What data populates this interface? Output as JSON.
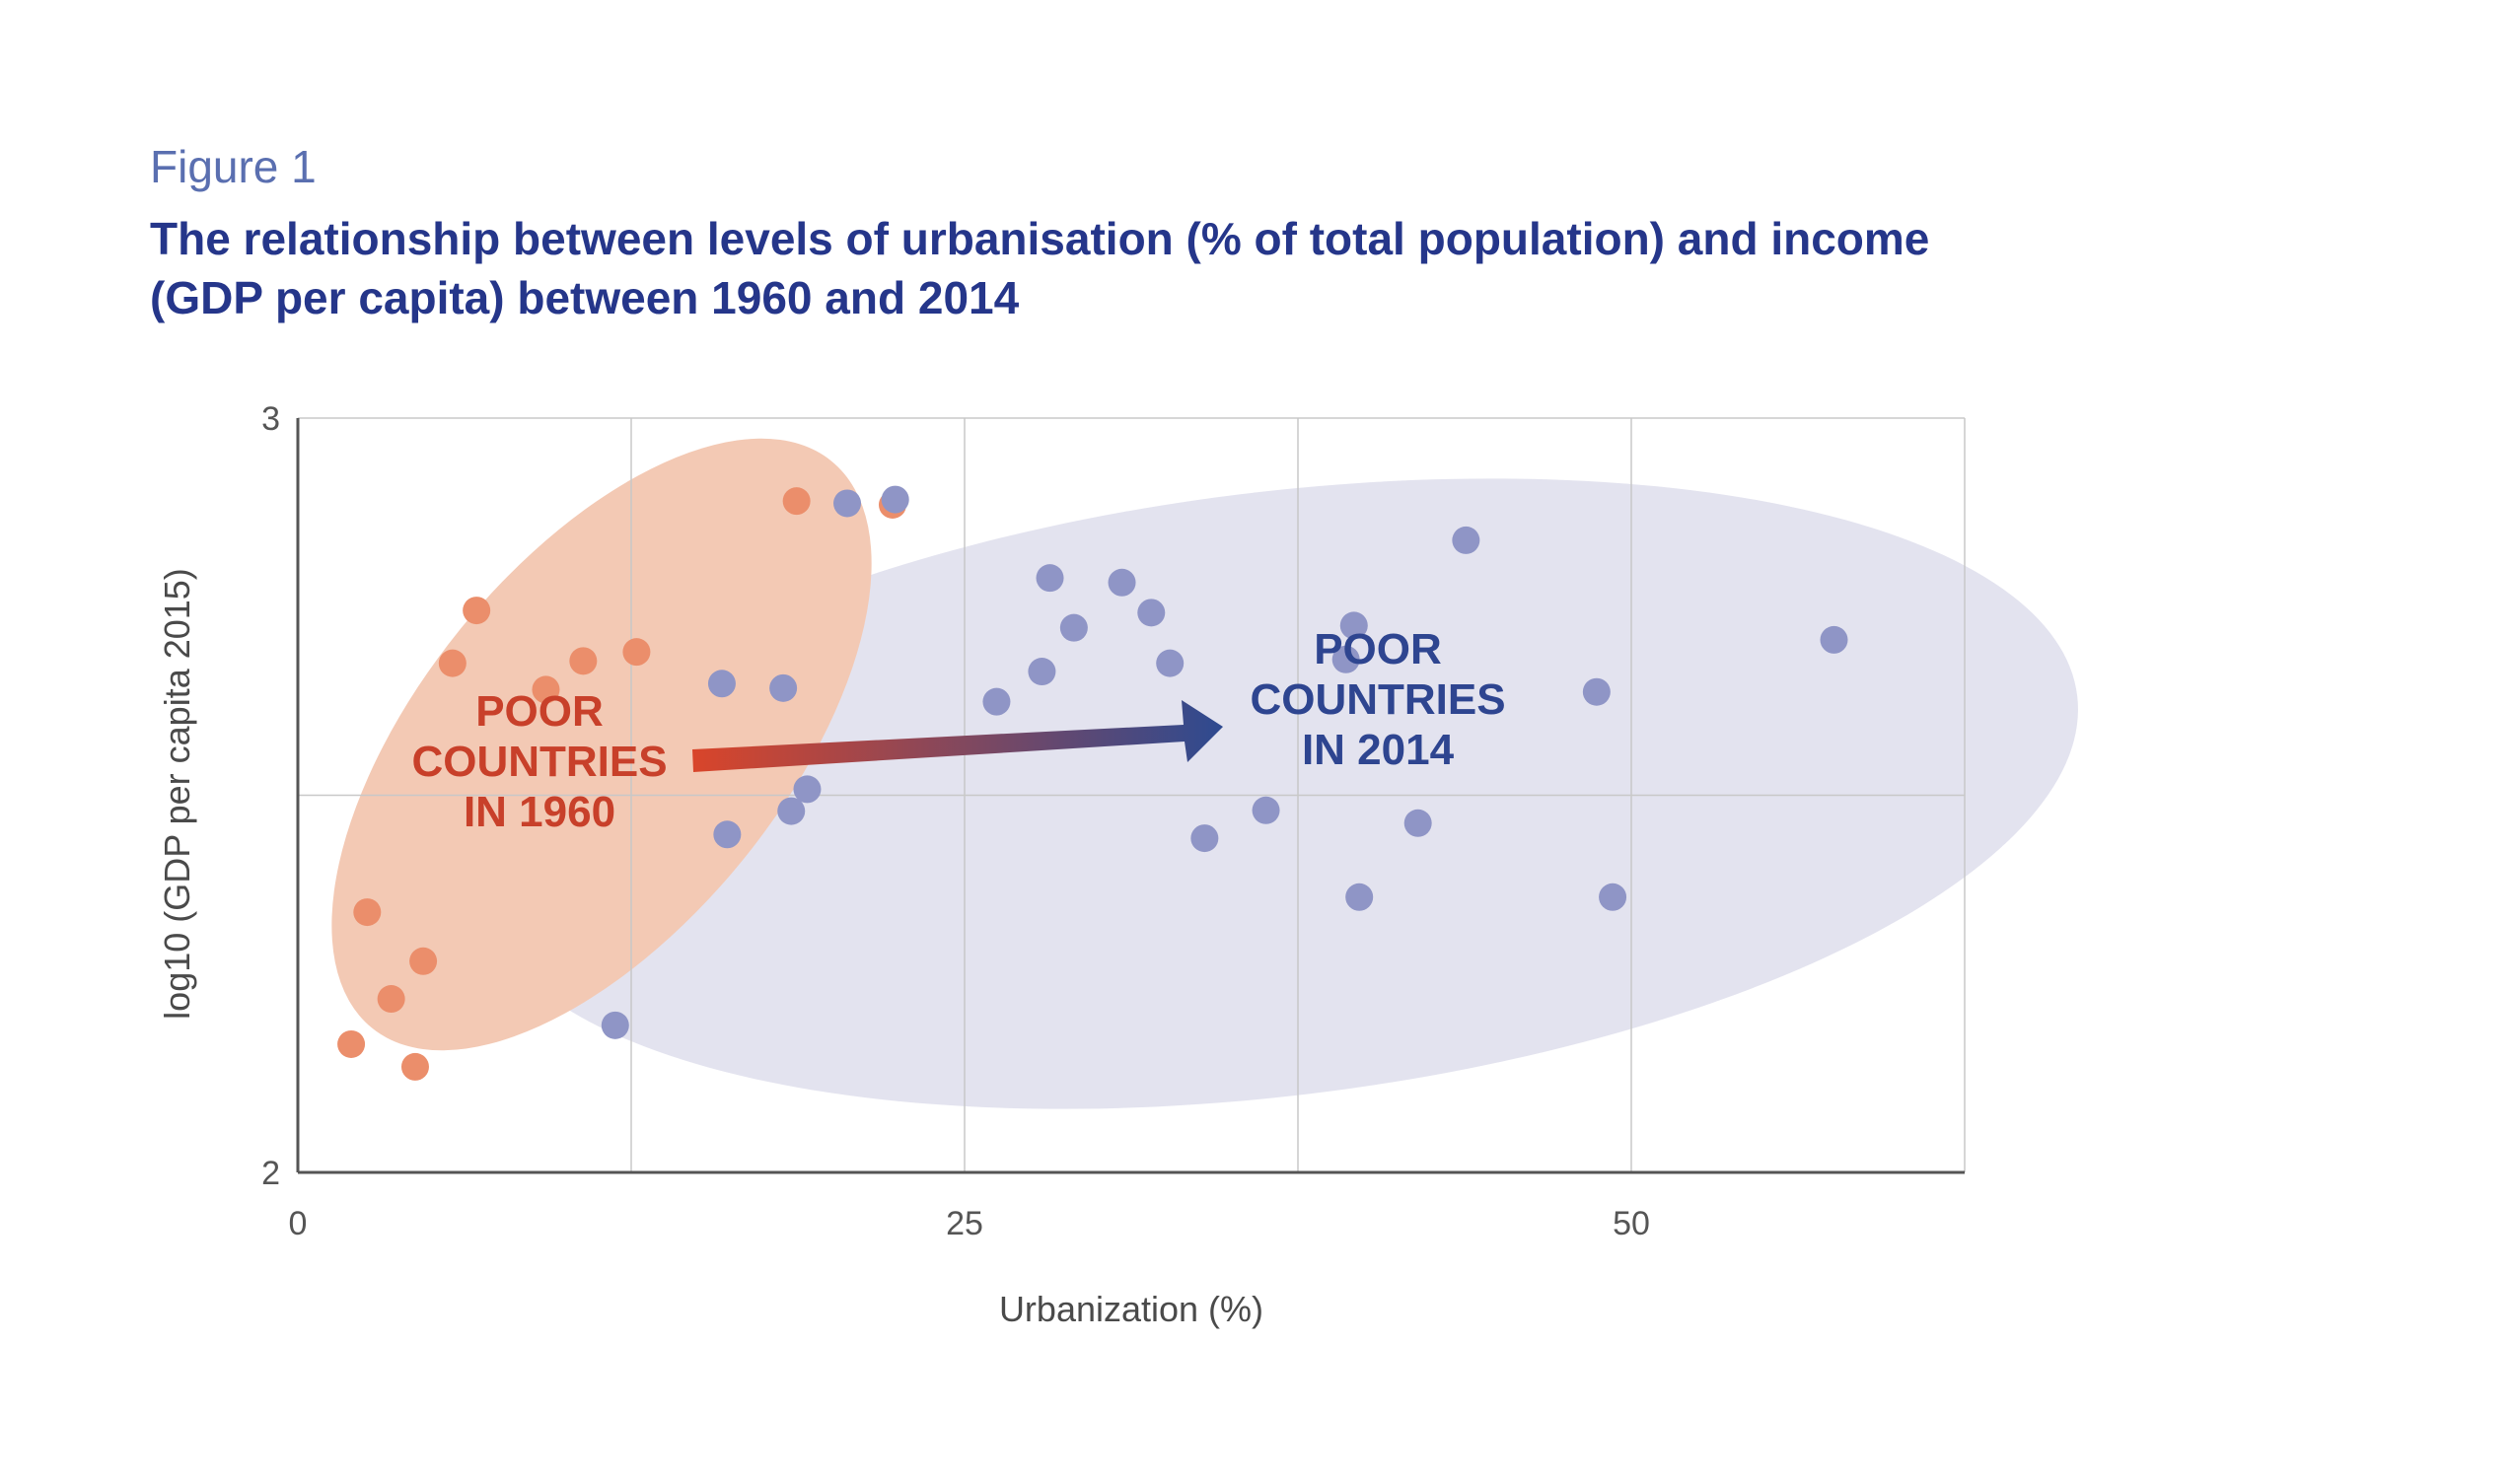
{
  "figure_label": "Figure 1",
  "title": "The relationship between levels of urbanisation (% of total population) and income (GDP per capita) between 1960 and 2014",
  "colors": {
    "title": "#25368a",
    "points_1960": "#eb8e6b",
    "points_2014": "#8f95c6",
    "region_1960": "#f3c9b4",
    "region_2014": "#e3e3ef",
    "label_1960": "#c8402a",
    "label_2014": "#2e4590"
  },
  "chart_data": {
    "type": "scatter",
    "xlabel": "Urbanization (%)",
    "ylabel": "log10 (GDP per capita 2015)",
    "xlim": [
      0,
      62.5
    ],
    "ylim": [
      2,
      3
    ],
    "xticks": [
      0,
      25,
      50
    ],
    "yticks": [
      2,
      3
    ],
    "grid": true,
    "series": [
      {
        "key": "1960",
        "points": [
          [
            18.7,
            2.89
          ],
          [
            22.3,
            2.885
          ],
          [
            6.7,
            2.745
          ],
          [
            5.8,
            2.675
          ],
          [
            10.7,
            2.678
          ],
          [
            12.7,
            2.69
          ],
          [
            9.3,
            2.64
          ],
          [
            2.6,
            2.345
          ],
          [
            4.7,
            2.28
          ],
          [
            3.5,
            2.23
          ],
          [
            2.0,
            2.17
          ],
          [
            4.4,
            2.14
          ]
        ]
      },
      {
        "key": "2014",
        "points": [
          [
            20.6,
            2.887
          ],
          [
            22.4,
            2.892
          ],
          [
            43.8,
            2.838
          ],
          [
            28.2,
            2.788
          ],
          [
            30.9,
            2.782
          ],
          [
            32.0,
            2.742
          ],
          [
            29.1,
            2.722
          ],
          [
            39.6,
            2.725
          ],
          [
            39.3,
            2.68
          ],
          [
            32.7,
            2.675
          ],
          [
            27.9,
            2.664
          ],
          [
            57.6,
            2.706
          ],
          [
            15.9,
            2.648
          ],
          [
            18.2,
            2.642
          ],
          [
            26.2,
            2.624
          ],
          [
            48.7,
            2.637
          ],
          [
            19.1,
            2.508
          ],
          [
            18.5,
            2.479
          ],
          [
            16.1,
            2.448
          ],
          [
            34.0,
            2.443
          ],
          [
            36.3,
            2.48
          ],
          [
            42.0,
            2.463
          ],
          [
            39.8,
            2.365
          ],
          [
            49.3,
            2.365
          ],
          [
            11.9,
            2.195
          ]
        ]
      }
    ],
    "annotations": [
      {
        "key": "1960",
        "lines": [
          "POOR",
          "COUNTRIES",
          "IN 1960"
        ]
      },
      {
        "key": "2014",
        "lines": [
          "POOR",
          "COUNTRIES",
          "IN 2014"
        ]
      }
    ]
  }
}
